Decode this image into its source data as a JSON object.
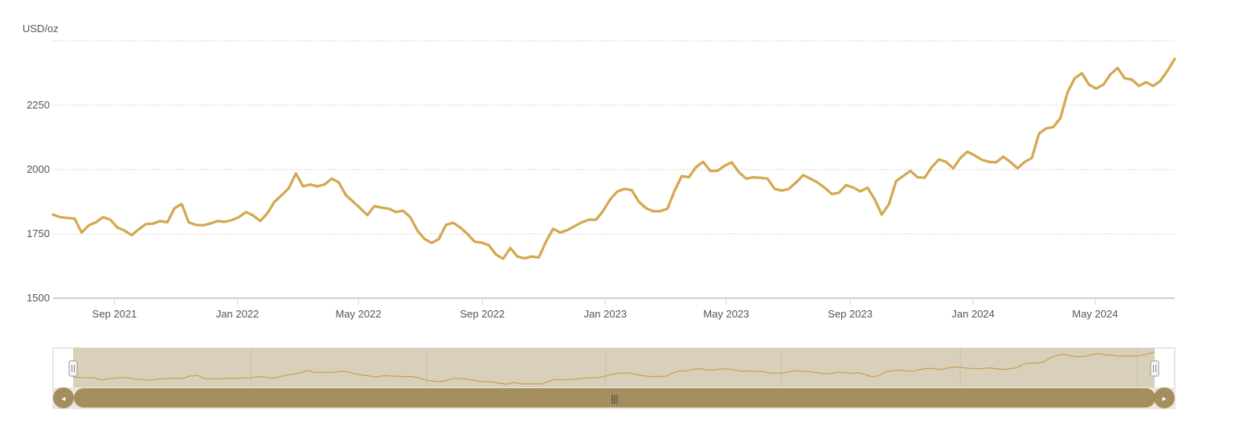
{
  "chart_data": {
    "type": "line",
    "ylabel": "USD/oz",
    "ylim": [
      1500,
      2500
    ],
    "yticks": [
      1500,
      1750,
      2000,
      2250
    ],
    "x_tick_labels": [
      "Sep 2021",
      "Jan 2022",
      "May 2022",
      "Sep 2022",
      "Jan 2023",
      "May 2023",
      "Sep 2023",
      "Jan 2024",
      "May 2024"
    ],
    "x_start": "2021-07-02",
    "x_end": "2024-07-19",
    "grid": true,
    "legend": "none",
    "line_color": "#d4a850",
    "series": [
      {
        "values": [
          1825,
          1815,
          1812,
          1810,
          1755,
          1783,
          1795,
          1815,
          1806,
          1775,
          1763,
          1745,
          1768,
          1788,
          1790,
          1800,
          1795,
          1850,
          1866,
          1795,
          1785,
          1783,
          1790,
          1800,
          1797,
          1803,
          1815,
          1835,
          1822,
          1800,
          1830,
          1875,
          1900,
          1928,
          1985,
          1935,
          1942,
          1935,
          1942,
          1965,
          1950,
          1900,
          1875,
          1850,
          1823,
          1858,
          1852,
          1848,
          1835,
          1840,
          1815,
          1763,
          1730,
          1715,
          1730,
          1785,
          1793,
          1775,
          1750,
          1720,
          1716,
          1706,
          1670,
          1653,
          1695,
          1662,
          1655,
          1662,
          1658,
          1720,
          1770,
          1755,
          1765,
          1780,
          1795,
          1805,
          1805,
          1840,
          1885,
          1915,
          1925,
          1920,
          1875,
          1850,
          1838,
          1838,
          1848,
          1918,
          1975,
          1970,
          2010,
          2030,
          1995,
          1995,
          2015,
          2028,
          1990,
          1965,
          1970,
          1968,
          1965,
          1925,
          1918,
          1925,
          1950,
          1978,
          1965,
          1950,
          1930,
          1905,
          1910,
          1940,
          1930,
          1915,
          1930,
          1885,
          1825,
          1865,
          1955,
          1975,
          1995,
          1970,
          1968,
          2010,
          2040,
          2030,
          2005,
          2045,
          2070,
          2055,
          2038,
          2030,
          2028,
          2050,
          2030,
          2005,
          2030,
          2045,
          2140,
          2160,
          2165,
          2200,
          2300,
          2355,
          2375,
          2330,
          2315,
          2330,
          2370,
          2395,
          2355,
          2350,
          2325,
          2340,
          2325,
          2345,
          2385,
          2430
        ]
      }
    ]
  },
  "navigator": {
    "handle_glyph": "|||",
    "left_arrow": "◂",
    "right_arrow": "▸"
  }
}
